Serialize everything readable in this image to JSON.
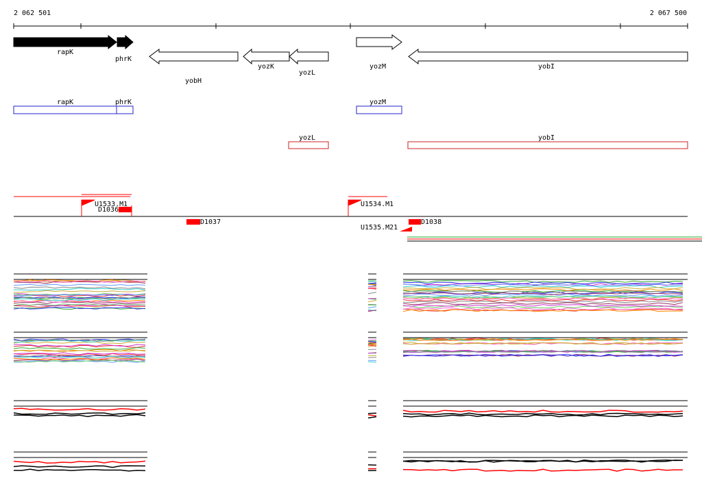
{
  "axis": {
    "start_label": "2 062 501",
    "end_label": "2 067 500"
  },
  "genes": [
    {
      "label": "rapK"
    },
    {
      "label": "phrK"
    },
    {
      "label": "yobH"
    },
    {
      "label": "yozK"
    },
    {
      "label": "yozL"
    },
    {
      "label": "yozM"
    },
    {
      "label": "yobI"
    }
  ],
  "annotations_blue": [
    {
      "label": "rapK"
    },
    {
      "label": "phrK"
    },
    {
      "label": "yozM"
    }
  ],
  "annotations_red": [
    {
      "label": "yozL"
    },
    {
      "label": "yobI"
    }
  ],
  "features": [
    {
      "label": "U1533.M1"
    },
    {
      "label": "D1036"
    },
    {
      "label": "D1037"
    },
    {
      "label": "U1534.M1"
    },
    {
      "label": "D1038"
    },
    {
      "label": "U1535.M21"
    }
  ]
}
